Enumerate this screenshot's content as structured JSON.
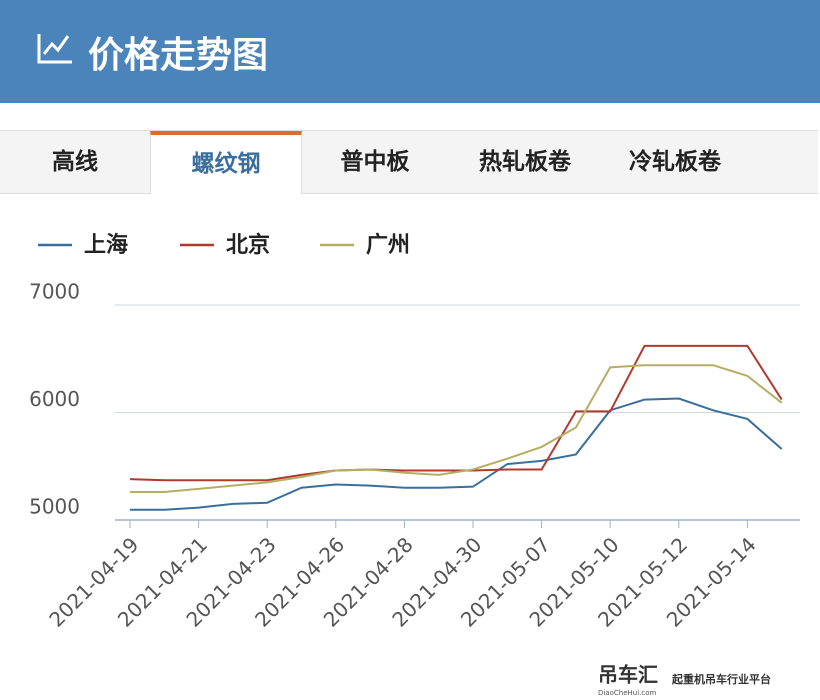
{
  "header": {
    "title": "价格走势图"
  },
  "tabs": {
    "items": [
      "高线",
      "螺纹钢",
      "普中板",
      "热轧板卷",
      "冷轧板卷"
    ],
    "active": 1
  },
  "watermark": {
    "brand": "吊车汇",
    "site": "DiaoCheHui.com",
    "slogan": "起重机吊车行业平台"
  },
  "chart_data": {
    "type": "line",
    "categories": [
      "2021-04-19",
      null,
      "2021-04-21",
      null,
      "2021-04-23",
      null,
      "2021-04-26",
      null,
      "2021-04-28",
      null,
      "2021-04-30",
      null,
      "2021-05-07",
      null,
      "2021-05-10",
      null,
      "2021-05-12",
      null,
      "2021-05-14",
      null
    ],
    "series": [
      {
        "name": "上海",
        "color": "#3a6f9d",
        "values": [
          5095,
          5095,
          5115,
          5150,
          5160,
          5300,
          5330,
          5320,
          5300,
          5300,
          5310,
          5520,
          5550,
          5610,
          6020,
          6120,
          6130,
          6020,
          5940,
          5660
        ]
      },
      {
        "name": "北京",
        "color": "#b03a2e",
        "values": [
          5380,
          5370,
          5370,
          5370,
          5370,
          5420,
          5460,
          5470,
          5460,
          5460,
          5460,
          5470,
          5470,
          6010,
          6010,
          6620,
          6620,
          6620,
          6620,
          6120
        ]
      },
      {
        "name": "广州",
        "color": "#b5ae63",
        "values": [
          5260,
          5260,
          5290,
          5320,
          5350,
          5400,
          5460,
          5470,
          5440,
          5420,
          5470,
          5570,
          5680,
          5860,
          6420,
          6440,
          6440,
          6440,
          6340,
          6090
        ]
      }
    ],
    "ylim": [
      5000,
      7000
    ],
    "yticks": [
      5000,
      6000,
      7000
    ],
    "grid": true
  }
}
